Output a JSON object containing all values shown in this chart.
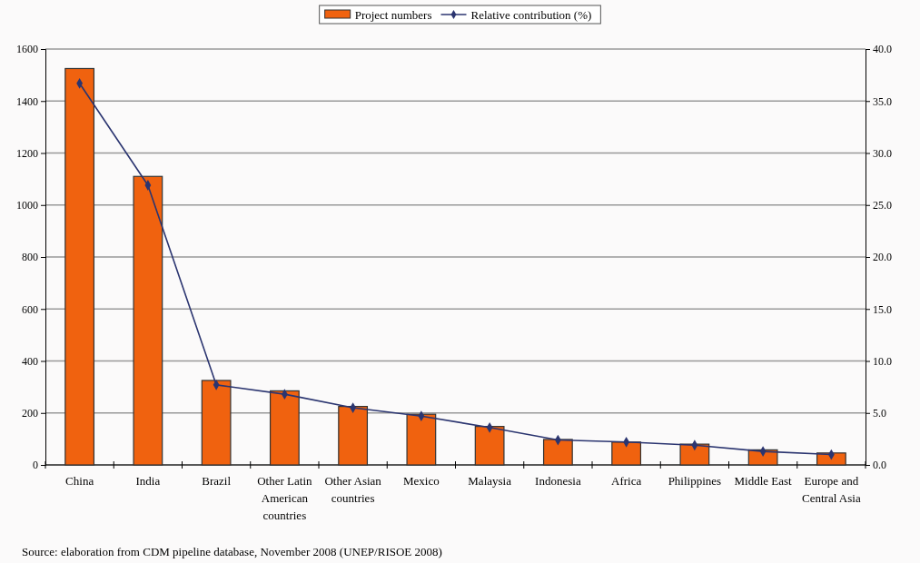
{
  "chart_data": {
    "type": "bar",
    "categories": [
      "China",
      "India",
      "Brazil",
      "Other Latin American countries",
      "Other Asian countries",
      "Mexico",
      "Malaysia",
      "Indonesia",
      "Africa",
      "Philippines",
      "Middle East",
      "Europe and Central Asia"
    ],
    "series": [
      {
        "name": "Project numbers",
        "color": "#f0620f",
        "values": [
          1525,
          1110,
          325,
          285,
          225,
          195,
          148,
          98,
          88,
          80,
          58,
          46
        ]
      },
      {
        "name": "Relative contribution (%)",
        "type": "line",
        "axis": "y2",
        "color": "#2b3570",
        "marker": "diamond",
        "values": [
          36.7,
          26.9,
          7.7,
          6.8,
          5.5,
          4.7,
          3.6,
          2.4,
          2.2,
          1.9,
          1.3,
          1.0
        ]
      }
    ],
    "ylim": [
      0,
      1600
    ],
    "yticks": [
      0,
      200,
      400,
      600,
      800,
      1000,
      1200,
      1400,
      1600
    ],
    "y2lim": [
      0,
      40
    ],
    "y2ticks": [
      {
        "value": 0,
        "label": "0.0"
      },
      {
        "value": 5,
        "label": "5.0"
      },
      {
        "value": 10,
        "label": "10.0"
      },
      {
        "value": 15,
        "label": "15.0"
      },
      {
        "value": 20,
        "label": "20.0"
      },
      {
        "value": 25,
        "label": "25.0"
      },
      {
        "value": 30,
        "label": "30.0"
      },
      {
        "value": 35,
        "label": "35.0"
      },
      {
        "value": 40,
        "label": "40.0"
      }
    ],
    "grid": "y",
    "legend": "top",
    "annotations": [
      "Source: elaboration from CDM pipeline database, November 2008 (UNEP/RISOE 2008)"
    ]
  }
}
